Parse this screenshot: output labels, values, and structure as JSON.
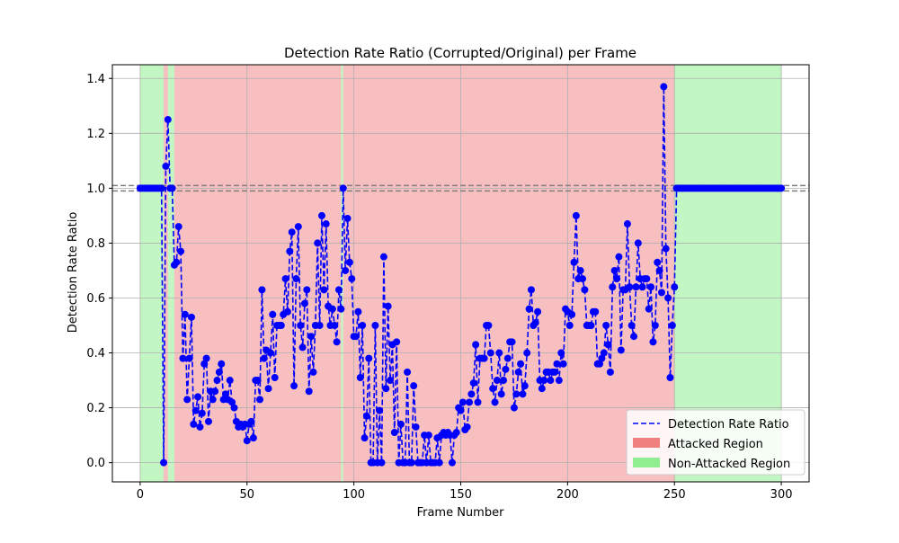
{
  "chart_data": {
    "type": "line",
    "title": "Detection Rate Ratio (Corrupted/Original) per Frame",
    "xlabel": "Frame Number",
    "ylabel": "Detection Rate Ratio",
    "xlim": [
      -13,
      313
    ],
    "ylim": [
      -0.07,
      1.45
    ],
    "xticks": [
      0,
      50,
      100,
      150,
      200,
      250,
      300
    ],
    "yticks": [
      0.0,
      0.2,
      0.4,
      0.6,
      0.8,
      1.0,
      1.2,
      1.4
    ],
    "ytick_labels": [
      "0.0",
      "0.2",
      "0.4",
      "0.6",
      "0.8",
      "1.0",
      "1.2",
      "1.4"
    ],
    "grid": true,
    "reference_lines": [
      1.01,
      0.99
    ],
    "legend": {
      "position": "lower-right",
      "entries": [
        {
          "label": "Detection Rate Ratio",
          "kind": "dashed-line",
          "color": "#0000ff"
        },
        {
          "label": "Attacked Region",
          "kind": "patch",
          "color": "#f08080"
        },
        {
          "label": "Non-Attacked Region",
          "kind": "patch",
          "color": "#90ee90"
        }
      ]
    },
    "colors": {
      "series": "#0000ff",
      "attacked": "#f08080",
      "non_attacked": "#90ee90",
      "reference": "#808080",
      "grid": "#b0b0b0"
    },
    "regions": [
      {
        "start": 0,
        "end": 11,
        "label": "Non-Attacked Region"
      },
      {
        "start": 11,
        "end": 13,
        "label": "Attacked Region"
      },
      {
        "start": 13,
        "end": 16,
        "label": "Non-Attacked Region"
      },
      {
        "start": 16,
        "end": 94,
        "label": "Attacked Region"
      },
      {
        "start": 94,
        "end": 95,
        "label": "Non-Attacked Region"
      },
      {
        "start": 95,
        "end": 250,
        "label": "Attacked Region"
      },
      {
        "start": 250,
        "end": 300,
        "label": "Non-Attacked Region"
      }
    ],
    "series": [
      {
        "name": "Detection Rate Ratio",
        "x_start": 0,
        "values": [
          1.0,
          1.0,
          1.0,
          1.0,
          1.0,
          1.0,
          1.0,
          1.0,
          1.0,
          1.0,
          1.0,
          0.0,
          1.08,
          1.25,
          1.0,
          1.0,
          0.72,
          0.73,
          0.86,
          0.77,
          0.38,
          0.54,
          0.23,
          0.38,
          0.53,
          0.14,
          0.19,
          0.24,
          0.13,
          0.18,
          0.36,
          0.38,
          0.15,
          0.26,
          0.23,
          0.26,
          0.3,
          0.33,
          0.36,
          0.23,
          0.25,
          0.23,
          0.3,
          0.22,
          0.2,
          0.15,
          0.13,
          0.14,
          0.13,
          0.14,
          0.08,
          0.14,
          0.15,
          0.09,
          0.3,
          0.3,
          0.23,
          0.63,
          0.38,
          0.41,
          0.27,
          0.4,
          0.54,
          0.31,
          0.5,
          0.5,
          0.5,
          0.54,
          0.67,
          0.55,
          0.77,
          0.84,
          0.28,
          0.67,
          0.86,
          0.5,
          0.42,
          0.58,
          0.63,
          0.26,
          0.46,
          0.33,
          0.5,
          0.8,
          0.5,
          0.9,
          0.63,
          0.87,
          0.57,
          0.5,
          0.56,
          0.5,
          0.44,
          0.63,
          0.56,
          1.0,
          0.7,
          0.89,
          0.73,
          0.67,
          0.46,
          0.46,
          0.55,
          0.31,
          0.5,
          0.09,
          0.17,
          0.38,
          0.0,
          0.0,
          0.5,
          0.0,
          0.19,
          0.0,
          0.75,
          0.27,
          0.57,
          0.3,
          0.43,
          0.11,
          0.44,
          0.0,
          0.14,
          0.0,
          0.0,
          0.33,
          0.0,
          0.0,
          0.28,
          0.13,
          0.0,
          0.0,
          0.0,
          0.1,
          0.0,
          0.1,
          0.0,
          0.0,
          0.0,
          0.09,
          0.0,
          0.1,
          0.11,
          0.1,
          0.11,
          0.1,
          0.0,
          0.1,
          0.11,
          0.2,
          0.19,
          0.22,
          0.12,
          0.13,
          0.22,
          0.25,
          0.29,
          0.43,
          0.22,
          0.38,
          0.38,
          0.38,
          0.5,
          0.5,
          0.4,
          0.27,
          0.22,
          0.3,
          0.4,
          0.25,
          0.3,
          0.34,
          0.38,
          0.44,
          0.44,
          0.2,
          0.25,
          0.33,
          0.36,
          0.25,
          0.28,
          0.4,
          0.56,
          0.63,
          0.5,
          0.51,
          0.55,
          0.3,
          0.27,
          0.3,
          0.33,
          0.33,
          0.3,
          0.33,
          0.33,
          0.36,
          0.3,
          0.4,
          0.36,
          0.56,
          0.55,
          0.5,
          0.54,
          0.73,
          0.9,
          0.67,
          0.7,
          0.67,
          0.63,
          0.5,
          0.5,
          0.5,
          0.55,
          0.55,
          0.36,
          0.36,
          0.38,
          0.4,
          0.5,
          0.43,
          0.33,
          0.64,
          0.7,
          0.67,
          0.75,
          0.41,
          0.63,
          0.63,
          0.87,
          0.64,
          0.5,
          0.46,
          0.64,
          0.8,
          0.67,
          0.64,
          0.67,
          0.67,
          0.56,
          0.64,
          0.44,
          0.5,
          0.73,
          0.7,
          0.62,
          1.37,
          0.78,
          0.6,
          0.31,
          0.5,
          0.64,
          1.0,
          1.0,
          1.0,
          1.0,
          1.0,
          1.0,
          1.0,
          1.0,
          1.0,
          1.0,
          1.0,
          1.0,
          1.0,
          1.0,
          1.0,
          1.0,
          1.0,
          1.0,
          1.0,
          1.0,
          1.0,
          1.0,
          1.0,
          1.0,
          1.0,
          1.0,
          1.0,
          1.0,
          1.0,
          1.0,
          1.0,
          1.0,
          1.0,
          1.0,
          1.0,
          1.0,
          1.0,
          1.0,
          1.0,
          1.0,
          1.0,
          1.0,
          1.0,
          1.0,
          1.0,
          1.0,
          1.0,
          1.0,
          1.0,
          1.0
        ]
      }
    ]
  }
}
